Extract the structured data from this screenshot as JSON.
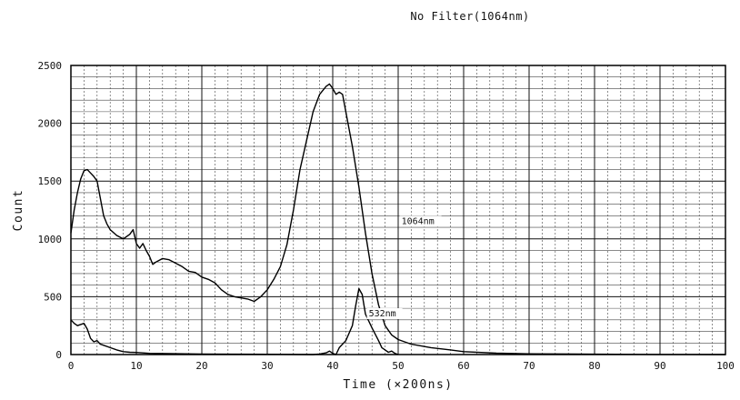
{
  "chart_data": {
    "type": "line",
    "title": "No Filter(1064nm)",
    "xlabel": "Time (×200ns)",
    "ylabel": "Count",
    "xlim": [
      0,
      100
    ],
    "ylim": [
      0,
      2500
    ],
    "x_ticks": [
      "0",
      "10",
      "20",
      "30",
      "40",
      "50",
      "60",
      "70",
      "80",
      "90",
      "100"
    ],
    "y_ticks": [
      "0",
      "500",
      "1000",
      "1500",
      "2000",
      "2500"
    ],
    "grid": true,
    "series": [
      {
        "name": "1064nm",
        "points": [
          [
            0,
            1050
          ],
          [
            0.5,
            1250
          ],
          [
            1,
            1400
          ],
          [
            1.5,
            1520
          ],
          [
            2,
            1590
          ],
          [
            2.5,
            1600
          ],
          [
            3,
            1570
          ],
          [
            3.5,
            1540
          ],
          [
            4,
            1500
          ],
          [
            4.5,
            1350
          ],
          [
            5,
            1200
          ],
          [
            5.5,
            1130
          ],
          [
            6,
            1080
          ],
          [
            7,
            1030
          ],
          [
            8,
            1000
          ],
          [
            9,
            1040
          ],
          [
            9.5,
            1080
          ],
          [
            10,
            960
          ],
          [
            10.5,
            920
          ],
          [
            11,
            960
          ],
          [
            11.5,
            900
          ],
          [
            12,
            850
          ],
          [
            12.5,
            780
          ],
          [
            13,
            800
          ],
          [
            14,
            830
          ],
          [
            15,
            820
          ],
          [
            16,
            790
          ],
          [
            17,
            760
          ],
          [
            18,
            720
          ],
          [
            19,
            710
          ],
          [
            20,
            670
          ],
          [
            21,
            650
          ],
          [
            22,
            620
          ],
          [
            23,
            560
          ],
          [
            24,
            520
          ],
          [
            25,
            500
          ],
          [
            26,
            490
          ],
          [
            27,
            480
          ],
          [
            28,
            460
          ],
          [
            29,
            500
          ],
          [
            30,
            560
          ],
          [
            31,
            650
          ],
          [
            32,
            760
          ],
          [
            33,
            950
          ],
          [
            34,
            1250
          ],
          [
            35,
            1600
          ],
          [
            36,
            1850
          ],
          [
            37,
            2100
          ],
          [
            38,
            2250
          ],
          [
            39,
            2320
          ],
          [
            39.5,
            2340
          ],
          [
            40,
            2300
          ],
          [
            40.5,
            2250
          ],
          [
            41,
            2270
          ],
          [
            41.5,
            2250
          ],
          [
            42,
            2100
          ],
          [
            43,
            1800
          ],
          [
            44,
            1450
          ],
          [
            45,
            1050
          ],
          [
            46,
            700
          ],
          [
            47,
            430
          ],
          [
            48,
            250
          ],
          [
            49,
            170
          ],
          [
            50,
            130
          ],
          [
            52,
            90
          ],
          [
            55,
            60
          ],
          [
            58,
            40
          ],
          [
            60,
            25
          ],
          [
            65,
            12
          ],
          [
            70,
            6
          ],
          [
            80,
            3
          ],
          [
            90,
            1
          ],
          [
            100,
            0
          ]
        ]
      },
      {
        "name": "532nm",
        "points": [
          [
            0,
            300
          ],
          [
            0.5,
            270
          ],
          [
            1,
            250
          ],
          [
            2,
            270
          ],
          [
            2.5,
            220
          ],
          [
            3,
            140
          ],
          [
            3.5,
            110
          ],
          [
            4,
            120
          ],
          [
            4.5,
            90
          ],
          [
            5,
            80
          ],
          [
            6,
            60
          ],
          [
            7,
            40
          ],
          [
            8,
            25
          ],
          [
            9,
            20
          ],
          [
            10,
            18
          ],
          [
            12,
            10
          ],
          [
            15,
            8
          ],
          [
            20,
            5
          ],
          [
            25,
            3
          ],
          [
            30,
            2
          ],
          [
            37,
            0
          ],
          [
            38,
            5
          ],
          [
            39,
            15
          ],
          [
            39.5,
            30
          ],
          [
            40,
            10
          ],
          [
            40.5,
            0
          ],
          [
            41,
            60
          ],
          [
            42,
            120
          ],
          [
            43,
            250
          ],
          [
            43.5,
            420
          ],
          [
            44,
            570
          ],
          [
            44.5,
            520
          ],
          [
            45,
            350
          ],
          [
            46,
            230
          ],
          [
            47,
            120
          ],
          [
            47.5,
            60
          ],
          [
            48,
            40
          ],
          [
            48.5,
            20
          ],
          [
            49,
            30
          ],
          [
            49.5,
            10
          ],
          [
            50,
            0
          ]
        ]
      }
    ],
    "annotations": [
      {
        "text": "1064nm",
        "x": 50.5,
        "y": 1130
      },
      {
        "text": "532nm",
        "x": 45.5,
        "y": 330
      }
    ]
  }
}
